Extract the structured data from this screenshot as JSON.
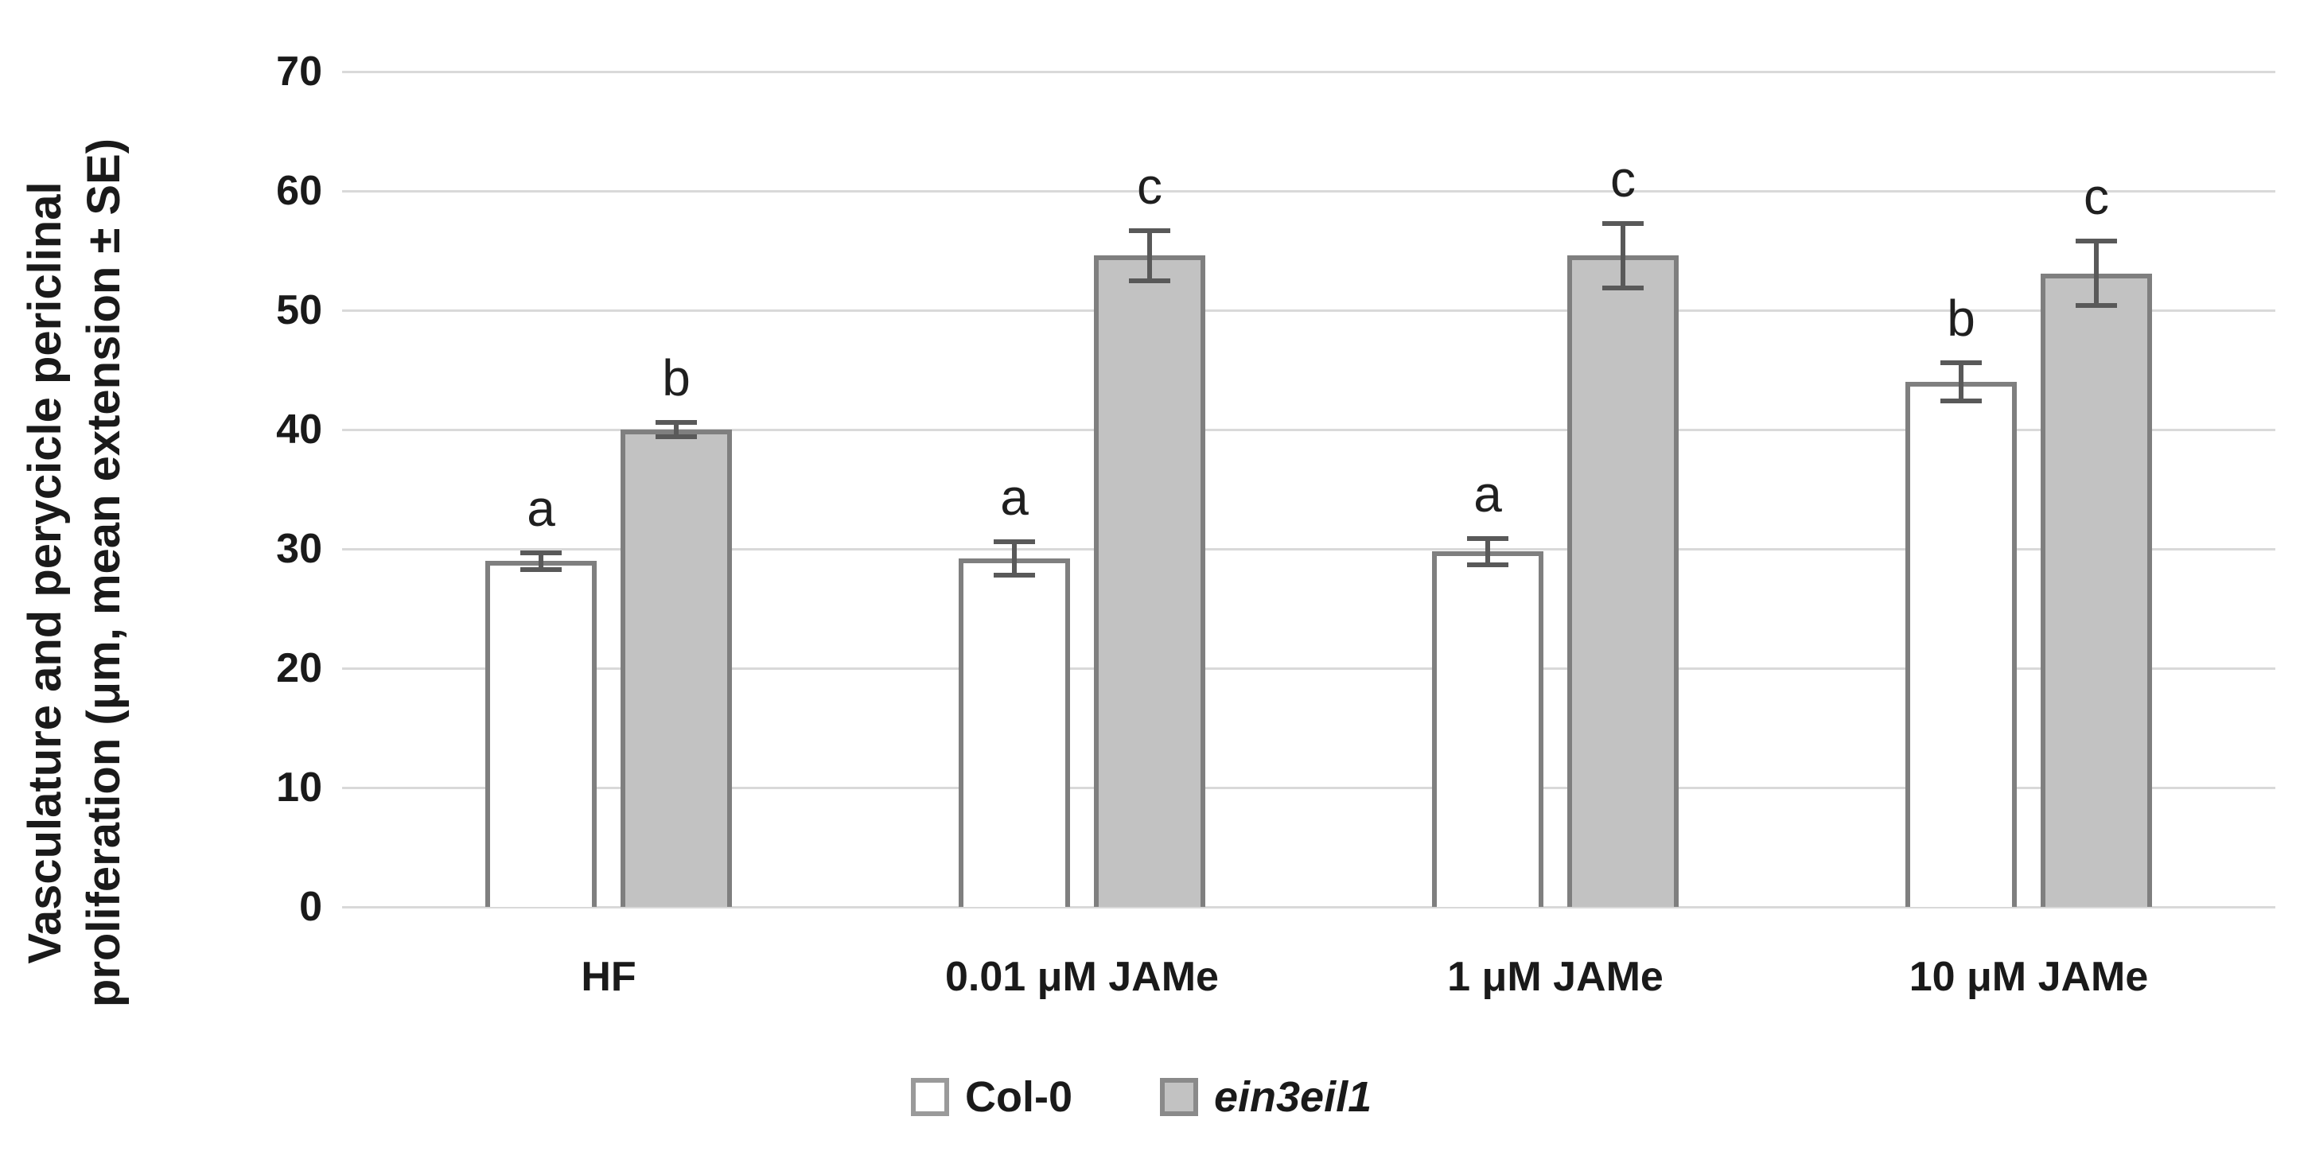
{
  "chart_data": {
    "type": "bar",
    "title": "",
    "ylabel_lines": [
      "Vasculature and perycicle periclinal",
      "proliferation (μm, mean extension ± SE)"
    ],
    "categories": [
      "HF",
      "0.01 μM JAMe",
      "1 μM JAMe",
      "10 μM JAMe"
    ],
    "series": [
      {
        "name": "Col-0",
        "italic": false,
        "fill": "#ffffff",
        "border": "#7f7f7f",
        "values": [
          29.0,
          29.2,
          29.8,
          44.0
        ],
        "errors": [
          0.5,
          1.2,
          0.9,
          1.4
        ],
        "letters": [
          "a",
          "a",
          "a",
          "b"
        ]
      },
      {
        "name": "ein3eil1",
        "italic": true,
        "fill": "#c2c2c2",
        "border": "#7f7f7f",
        "values": [
          40.0,
          54.6,
          54.6,
          53.1
        ],
        "errors": [
          0.4,
          1.9,
          2.5,
          2.5
        ],
        "letters": [
          "b",
          "c",
          "c",
          "c"
        ]
      }
    ],
    "ylim": [
      0,
      70
    ],
    "yticks": [
      0,
      10,
      20,
      30,
      40,
      50,
      60,
      70
    ],
    "grid": true,
    "legend_position": "bottom",
    "colors": {
      "gridline": "#d9d9d9",
      "error_bar": "#595959",
      "text": "#1a1a1a"
    }
  }
}
